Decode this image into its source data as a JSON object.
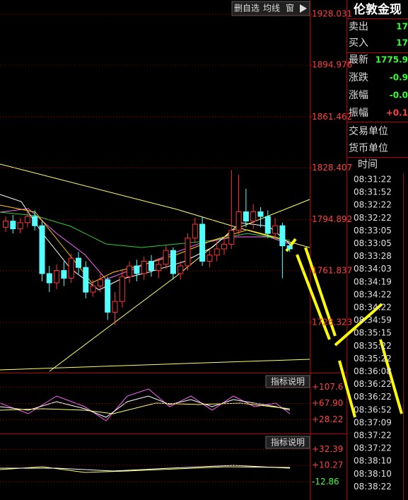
{
  "toolbar": {
    "buttons": [
      "删自选",
      "均线",
      "窗"
    ]
  },
  "quote": {
    "title": "伦敦金现",
    "rows": [
      {
        "label": "卖出",
        "value": "17"
      },
      {
        "label": "买入",
        "value": "17"
      },
      {
        "label": "最新",
        "value": "1775.9"
      },
      {
        "label": "涨跌",
        "value": "-0.9"
      },
      {
        "label": "涨幅",
        "value": "-0.0"
      },
      {
        "label": "振幅",
        "value": "+0.1"
      },
      {
        "label": "交易单位",
        "value": null
      },
      {
        "label": "货币单位",
        "value": null
      }
    ],
    "time_header": "时间",
    "times": [
      "08:31:22",
      "08:31:52",
      "08:32:22",
      "08:32:22",
      "08:33:05",
      "08:33:05",
      "08:33:28",
      "08:34:03",
      "08:34:19",
      "08:34:22",
      "08:34:22",
      "08:34:59",
      "08:35:15",
      "08:35:22",
      "08:35:22",
      "08:36:08",
      "08:36:22",
      "08:36:22",
      "08:36:52",
      "08:37:09",
      "08:37:22",
      "08:37:22",
      "08:38:10",
      "08:38:10",
      "08:38:22"
    ]
  },
  "chart_data": {
    "type": "candlestick",
    "ylim": [
      1696.74,
      1937.19
    ],
    "yticks": [
      1928.031,
      1894.976,
      1861.462,
      1828.407,
      1794.892,
      1761.837,
      1728.323
    ],
    "open": [
      1790,
      1794,
      1789,
      1793,
      1797,
      1791,
      1760,
      1754,
      1762,
      1757,
      1770,
      1764,
      1748,
      1752,
      1756,
      1735,
      1742,
      1758,
      1765,
      1760,
      1768,
      1762,
      1766,
      1775,
      1760,
      1765,
      1783,
      1792,
      1768,
      1772,
      1776,
      1779,
      1788,
      1800,
      1794,
      1800,
      1797,
      1786,
      1791,
      1778
    ],
    "close": [
      1794,
      1789,
      1793,
      1797,
      1791,
      1760,
      1754,
      1762,
      1757,
      1770,
      1764,
      1748,
      1752,
      1756,
      1735,
      1742,
      1758,
      1765,
      1760,
      1768,
      1762,
      1766,
      1775,
      1760,
      1765,
      1783,
      1792,
      1768,
      1772,
      1776,
      1779,
      1788,
      1800,
      1794,
      1800,
      1797,
      1786,
      1791,
      1778,
      1776
    ],
    "high": [
      1797,
      1798,
      1796,
      1800,
      1801,
      1794,
      1765,
      1766,
      1768,
      1773,
      1774,
      1768,
      1756,
      1760,
      1758,
      1748,
      1762,
      1768,
      1769,
      1771,
      1772,
      1770,
      1778,
      1777,
      1768,
      1786,
      1796,
      1797,
      1776,
      1781,
      1784,
      1827,
      1824,
      1815,
      1805,
      1803,
      1801,
      1796,
      1793,
      1780
    ],
    "low": [
      1787,
      1786,
      1786,
      1790,
      1788,
      1755,
      1748,
      1750,
      1752,
      1754,
      1760,
      1744,
      1745,
      1748,
      1730,
      1727,
      1738,
      1754,
      1755,
      1756,
      1758,
      1757,
      1763,
      1756,
      1756,
      1762,
      1780,
      1765,
      1764,
      1768,
      1772,
      1776,
      1785,
      1790,
      1789,
      1790,
      1783,
      1782,
      1757,
      1774
    ],
    "up_color": "#ff3232",
    "down_color": "#54ffff"
  },
  "indicators": [
    {
      "button": "指标说明",
      "ylim": [
        -3.53,
        141.1
      ],
      "yticks": [
        {
          "value": 107.6,
          "label": "+107.6"
        },
        {
          "value": 67.9,
          "label": "+67.90"
        },
        {
          "value": 28.22,
          "label": "+28.22"
        }
      ]
    },
    {
      "button": "指标说明",
      "ylim": [
        -38.0,
        53.5
      ],
      "yticks": [
        {
          "value": 32.39,
          "label": "+32.39"
        },
        {
          "value": 10.27,
          "label": "+10.27"
        },
        {
          "value": -12.86,
          "label": "-12.86"
        }
      ]
    }
  ]
}
